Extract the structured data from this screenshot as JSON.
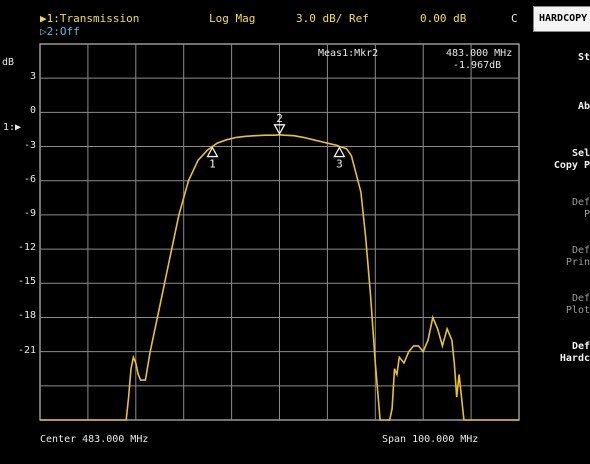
{
  "header": {
    "trace1": "▶1:Transmission",
    "trace2": "▷2:Off",
    "format": "Log Mag",
    "scale": "3.0 dB/ Ref",
    "ref_value": "0.00 dB",
    "channel_flag": "C"
  },
  "marker_readout": {
    "label": "Meas1:Mkr2",
    "freq": "483.000 MHz",
    "value": "-1.967dB"
  },
  "y_axis": {
    "unit": "dB",
    "ref_marker": "1:▶",
    "tick_labels": [
      "3",
      "0",
      "-3",
      "-6",
      "-9",
      "-12",
      "-15",
      "-18",
      "-21"
    ],
    "ticks": [
      3,
      0,
      -3,
      -6,
      -9,
      -12,
      -15,
      -18,
      -21
    ],
    "top": 6,
    "bottom": -27
  },
  "footer": {
    "center": "Center 483.000 MHz",
    "span": "Span 100.000 MHz"
  },
  "markers": [
    {
      "label": "1",
      "freq": 469.0,
      "db": -3.0
    },
    {
      "label": "2",
      "freq": 483.0,
      "db": -1.97
    },
    {
      "label": "3",
      "freq": 495.5,
      "db": -3.0
    }
  ],
  "softkeys": {
    "title": "HARDCOPY",
    "items": [
      {
        "label": "St",
        "enabled": true
      },
      {
        "label": "Ab",
        "enabled": true
      },
      {
        "label": "Sel\nCopy P",
        "enabled": true
      },
      {
        "label": "Def\nP",
        "enabled": false
      },
      {
        "label": "Def\nPrin",
        "enabled": false
      },
      {
        "label": "Def\nPlot",
        "enabled": false
      },
      {
        "label": "Def\nHardc",
        "enabled": true
      }
    ]
  },
  "chart_data": {
    "type": "line",
    "title": "",
    "xlabel": "",
    "ylabel": "dB",
    "xlim": [
      433,
      533
    ],
    "ylim": [
      -27,
      6
    ],
    "grid": true,
    "series": [
      {
        "x": [
          433,
          433.5,
          434,
          436,
          438,
          440,
          442,
          444,
          446,
          448,
          450,
          451,
          451.5,
          452,
          452.5,
          453,
          453.5,
          454,
          454.5,
          455,
          456,
          458,
          460,
          462,
          464,
          466,
          468,
          469,
          470,
          472,
          474,
          476,
          478,
          480,
          482,
          483,
          484,
          486,
          488,
          490,
          492,
          494,
          495,
          495.5,
          496,
          497,
          498,
          500,
          501,
          502,
          503,
          504,
          505,
          506,
          506.5,
          507,
          507.5,
          508,
          509,
          510,
          511,
          512,
          513,
          514,
          515,
          516,
          517,
          518,
          519,
          519.5,
          520,
          520.5,
          521,
          521.5,
          522,
          523,
          525,
          527,
          529,
          531,
          533
        ],
        "values": [
          -27.5,
          -28,
          -28,
          -28,
          -28,
          -28,
          -28,
          -28,
          -28,
          -28,
          -28,
          -28,
          -25,
          -22.5,
          -21.5,
          -22,
          -23,
          -23.5,
          -23.5,
          -23.5,
          -21,
          -17,
          -13,
          -9,
          -6,
          -4.2,
          -3.3,
          -3,
          -2.7,
          -2.4,
          -2.2,
          -2.1,
          -2.05,
          -2,
          -2,
          -1.97,
          -2,
          -2.05,
          -2.2,
          -2.4,
          -2.6,
          -2.8,
          -2.9,
          -3,
          -3.05,
          -3.2,
          -3.8,
          -7,
          -11,
          -16,
          -22,
          -27,
          -28,
          -28,
          -26,
          -22.5,
          -23,
          -21.5,
          -22,
          -21,
          -20.5,
          -20.5,
          -21,
          -20,
          -18,
          -19,
          -20.5,
          -19,
          -20,
          -22,
          -25,
          -23,
          -25,
          -27,
          -28,
          -28,
          -28,
          -28,
          -28,
          -28,
          -28
        ]
      }
    ]
  }
}
